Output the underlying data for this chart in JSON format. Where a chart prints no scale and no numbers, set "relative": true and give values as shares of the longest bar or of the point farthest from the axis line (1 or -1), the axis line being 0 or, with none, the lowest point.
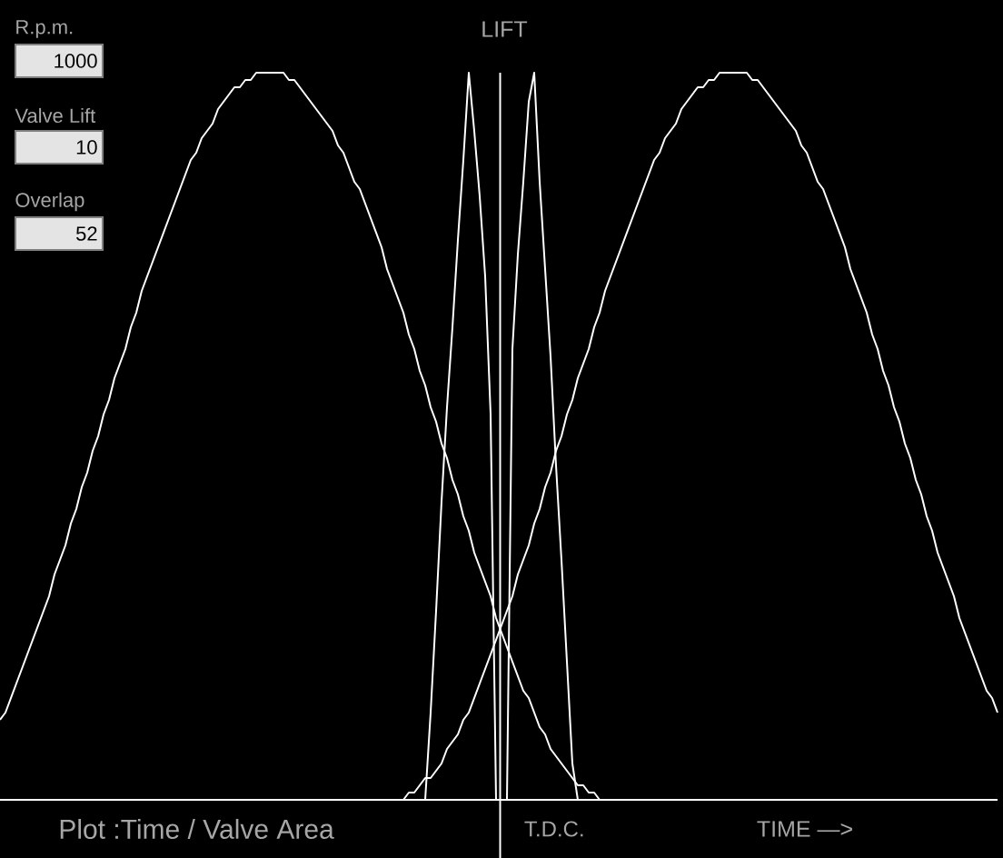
{
  "chart_data": {
    "type": "line",
    "relative": true,
    "title": "Plot :Time / Valve Area",
    "xlabel": "TIME —>",
    "ylabel": "LIFT",
    "annotations": [
      "T.D.C.",
      "R.p.m.",
      "1000",
      "Valve Lift",
      "10",
      "Overlap",
      "52"
    ],
    "categories": [
      null,
      null,
      null,
      null,
      null,
      null,
      null,
      null,
      null,
      null,
      null,
      null,
      null,
      null,
      null,
      null,
      null,
      null,
      null,
      null,
      null,
      null,
      null,
      null,
      null,
      null,
      null,
      null,
      null,
      null,
      null,
      null,
      null,
      null,
      null,
      null,
      null,
      null,
      null,
      null,
      null,
      null,
      null,
      null,
      null,
      null,
      null,
      null,
      null,
      null,
      null,
      null,
      null,
      null,
      null,
      null,
      null,
      null,
      null,
      null,
      null,
      null,
      null,
      null,
      null,
      null,
      null,
      null,
      null,
      null,
      null,
      null,
      null,
      null,
      null,
      null,
      null,
      null,
      null,
      null,
      null,
      null,
      null,
      null,
      null,
      null,
      null,
      null,
      null,
      null,
      null,
      null,
      null,
      null,
      null,
      null,
      null,
      null,
      null,
      null,
      null,
      null,
      null,
      null,
      null,
      null,
      null,
      null,
      null,
      null,
      null,
      null,
      null,
      null,
      null,
      null,
      null,
      null,
      null,
      null,
      null,
      null,
      null,
      null,
      null,
      null,
      null,
      null,
      null,
      null,
      null,
      null,
      null,
      null,
      null,
      null,
      null,
      null,
      null,
      null,
      null,
      null,
      null,
      null,
      null,
      null,
      null,
      null,
      null,
      null,
      null,
      null,
      null,
      null,
      null,
      null,
      null,
      null,
      null,
      null,
      null,
      null,
      null,
      null,
      null,
      null,
      null,
      null,
      null,
      null,
      null,
      null,
      null,
      null,
      null,
      null,
      null,
      null,
      null,
      null,
      null,
      null,
      null,
      null
    ],
    "series": [
      {
        "color": "#ffffff",
        "values": [
          0.11,
          0.12,
          0.14,
          0.16,
          0.18,
          0.2,
          0.22,
          0.24,
          0.26,
          0.28,
          0.31,
          0.33,
          0.35,
          0.38,
          0.4,
          0.43,
          0.45,
          0.48,
          0.5,
          0.53,
          0.55,
          0.58,
          0.6,
          0.62,
          0.65,
          0.67,
          0.7,
          0.72,
          0.74,
          0.76,
          0.78,
          0.8,
          0.82,
          0.84,
          0.86,
          0.88,
          0.89,
          0.91,
          0.92,
          0.93,
          0.95,
          0.96,
          0.97,
          0.98,
          0.98,
          0.99,
          0.99,
          1.0,
          1.0,
          1.0,
          1.0,
          1.0,
          1.0,
          0.99,
          0.99,
          0.98,
          0.97,
          0.96,
          0.95,
          0.94,
          0.93,
          0.92,
          0.9,
          0.89,
          0.87,
          0.85,
          0.84,
          0.82,
          0.8,
          0.78,
          0.76,
          0.73,
          0.71,
          0.69,
          0.67,
          0.64,
          0.62,
          0.59,
          0.57,
          0.54,
          0.52,
          0.49,
          0.47,
          0.44,
          0.42,
          0.39,
          0.37,
          0.34,
          0.32,
          0.3,
          0.28,
          0.25,
          0.23,
          0.21,
          0.19,
          0.17,
          0.15,
          0.14,
          0.12,
          0.1,
          0.09,
          0.07,
          0.06,
          0.05,
          0.04,
          0.03,
          0.02,
          0.02,
          0.01,
          0.01,
          0,
          null,
          null,
          null,
          null,
          null,
          null,
          null,
          null,
          null,
          null,
          null,
          null,
          null,
          null,
          null,
          null,
          null,
          null,
          null,
          null,
          null,
          null,
          null,
          null,
          null,
          null,
          null,
          null,
          null,
          null,
          null,
          null,
          null,
          null,
          null,
          null,
          null,
          null,
          null,
          null,
          null,
          null,
          null,
          null,
          null,
          null,
          null,
          null,
          null,
          null,
          null,
          null,
          null,
          null,
          null,
          null,
          null,
          null,
          null,
          null,
          null,
          null,
          null,
          null,
          null,
          null,
          null,
          null,
          null,
          null,
          null,
          null,
          null
        ]
      },
      {
        "color": "#ffffff",
        "values": [
          null,
          null,
          null,
          null,
          null,
          null,
          null,
          null,
          null,
          null,
          null,
          null,
          null,
          null,
          null,
          null,
          null,
          null,
          null,
          null,
          null,
          null,
          null,
          null,
          null,
          null,
          null,
          null,
          null,
          null,
          null,
          null,
          null,
          null,
          null,
          null,
          null,
          null,
          null,
          null,
          null,
          null,
          null,
          null,
          null,
          null,
          null,
          null,
          null,
          null,
          null,
          null,
          null,
          null,
          null,
          null,
          null,
          null,
          null,
          null,
          null,
          null,
          null,
          null,
          null,
          null,
          null,
          null,
          null,
          null,
          null,
          null,
          null,
          null,
          0,
          0.01,
          0.01,
          0.02,
          0.03,
          0.03,
          0.04,
          0.05,
          0.07,
          0.08,
          0.09,
          0.11,
          0.12,
          0.14,
          0.16,
          0.18,
          0.2,
          0.22,
          0.24,
          0.26,
          0.28,
          0.31,
          0.33,
          0.35,
          0.38,
          0.4,
          0.43,
          0.45,
          0.48,
          0.5,
          0.53,
          0.55,
          0.58,
          0.6,
          0.62,
          0.65,
          0.67,
          0.7,
          0.72,
          0.74,
          0.76,
          0.78,
          0.8,
          0.82,
          0.84,
          0.86,
          0.88,
          0.89,
          0.91,
          0.92,
          0.93,
          0.95,
          0.96,
          0.97,
          0.98,
          0.98,
          0.99,
          0.99,
          1.0,
          1.0,
          1.0,
          1.0,
          1.0,
          1.0,
          0.99,
          0.99,
          0.98,
          0.97,
          0.96,
          0.95,
          0.94,
          0.93,
          0.92,
          0.9,
          0.89,
          0.87,
          0.85,
          0.84,
          0.82,
          0.8,
          0.78,
          0.76,
          0.73,
          0.71,
          0.69,
          0.67,
          0.64,
          0.62,
          0.59,
          0.57,
          0.54,
          0.52,
          0.49,
          0.47,
          0.44,
          0.42,
          0.39,
          0.37,
          0.34,
          0.32,
          0.3,
          0.28,
          0.25,
          0.23,
          0.21,
          0.19,
          0.17,
          0.15,
          0.14,
          0.12
        ]
      },
      {
        "color": "#ffffff",
        "values": [
          null,
          null,
          null,
          null,
          null,
          null,
          null,
          null,
          null,
          null,
          null,
          null,
          null,
          null,
          null,
          null,
          null,
          null,
          null,
          null,
          null,
          null,
          null,
          null,
          null,
          null,
          null,
          null,
          null,
          null,
          null,
          null,
          null,
          null,
          null,
          null,
          null,
          null,
          null,
          null,
          null,
          null,
          null,
          null,
          null,
          null,
          null,
          null,
          null,
          null,
          null,
          null,
          null,
          null,
          null,
          null,
          null,
          null,
          null,
          null,
          null,
          null,
          null,
          null,
          null,
          null,
          null,
          null,
          null,
          null,
          null,
          null,
          null,
          null,
          null,
          null,
          null,
          null,
          0,
          0.12,
          0.26,
          0.41,
          0.54,
          0.65,
          0.77,
          0.88,
          1.0,
          0.92,
          0.83,
          0.72,
          0.53,
          0,
          null,
          null,
          null,
          null,
          null,
          null,
          null,
          null,
          null,
          null,
          null,
          null,
          null,
          null,
          null,
          null,
          null,
          null,
          null,
          null,
          null,
          null,
          null,
          null,
          null,
          null,
          null,
          null,
          null,
          null,
          null,
          null,
          null,
          null,
          null,
          null,
          null,
          null,
          null,
          null,
          null,
          null,
          null,
          null,
          null,
          null,
          null,
          null,
          null,
          null,
          null,
          null,
          null,
          null,
          null,
          null,
          null,
          null,
          null,
          null,
          null,
          null,
          null,
          null,
          null,
          null,
          null,
          null,
          null,
          null,
          null,
          null,
          null,
          null,
          null,
          null,
          null,
          null,
          null,
          null,
          null,
          null,
          null,
          null,
          null,
          null,
          null,
          null,
          null,
          null,
          null,
          null
        ]
      },
      {
        "color": "#ffffff",
        "values": [
          null,
          null,
          null,
          null,
          null,
          null,
          null,
          null,
          null,
          null,
          null,
          null,
          null,
          null,
          null,
          null,
          null,
          null,
          null,
          null,
          null,
          null,
          null,
          null,
          null,
          null,
          null,
          null,
          null,
          null,
          null,
          null,
          null,
          null,
          null,
          null,
          null,
          null,
          null,
          null,
          null,
          null,
          null,
          null,
          null,
          null,
          null,
          null,
          null,
          null,
          null,
          null,
          null,
          null,
          null,
          null,
          null,
          null,
          null,
          null,
          null,
          null,
          null,
          null,
          null,
          null,
          null,
          null,
          null,
          null,
          null,
          null,
          null,
          null,
          null,
          null,
          null,
          null,
          null,
          null,
          null,
          null,
          null,
          null,
          null,
          null,
          null,
          null,
          null,
          null,
          null,
          null,
          null,
          0,
          0.62,
          0.75,
          0.85,
          0.96,
          1.0,
          0.85,
          0.73,
          0.61,
          0.46,
          0.33,
          0.19,
          0.05,
          0,
          null,
          null,
          null,
          null,
          null,
          null,
          null,
          null,
          null,
          null,
          null,
          null,
          null,
          null,
          null,
          null,
          null,
          null,
          null,
          null,
          null,
          null,
          null,
          null,
          null,
          null,
          null,
          null,
          null,
          null,
          null,
          null,
          null,
          null,
          null,
          null,
          null,
          null,
          null,
          null,
          null,
          null,
          null,
          null,
          null,
          null,
          null,
          null,
          null,
          null,
          null,
          null,
          null,
          null,
          null,
          null,
          null,
          null,
          null,
          null,
          null,
          null,
          null,
          null,
          null,
          null,
          null,
          null,
          null,
          null,
          null,
          null,
          null,
          null,
          null,
          null,
          null
        ]
      }
    ]
  }
}
